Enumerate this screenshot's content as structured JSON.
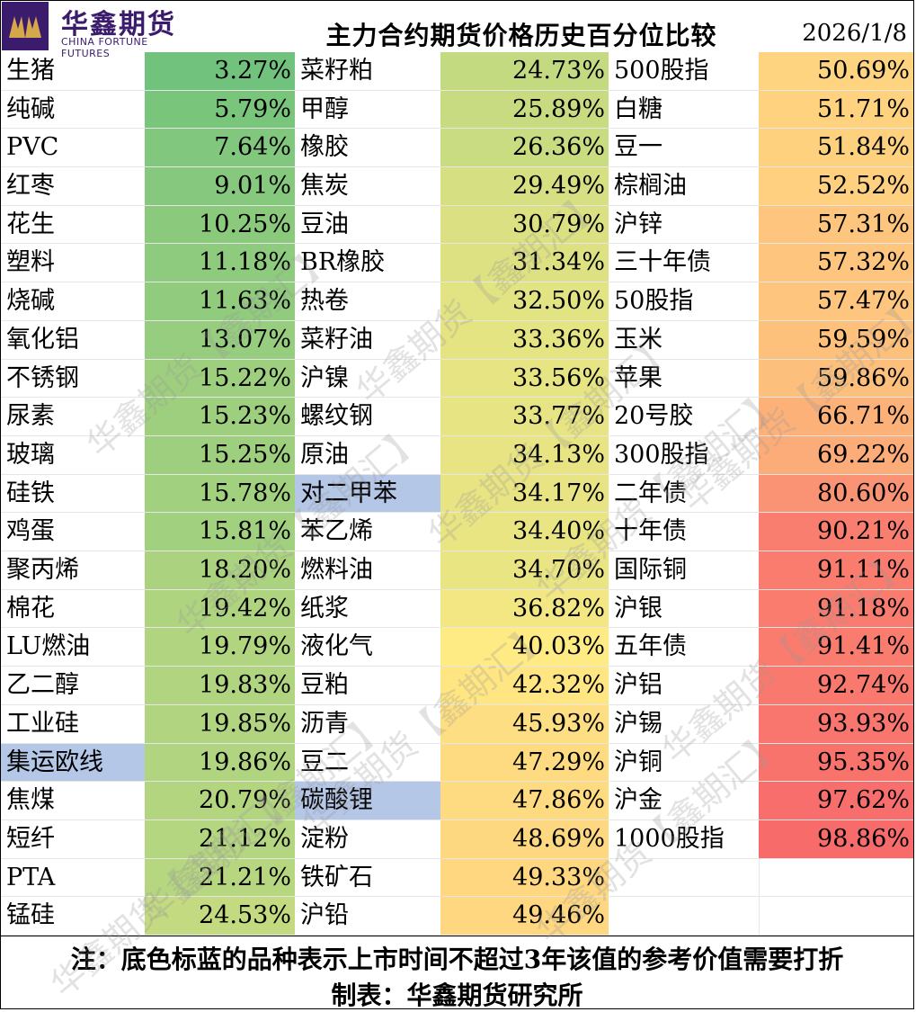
{
  "header": {
    "logo_cn": "华鑫期货",
    "logo_en": "CHINA FORTUNE FUTURES",
    "title": "主力合约期货价格历史百分位比较",
    "date": "2026/1/8"
  },
  "colors": {
    "low": "#63be7b",
    "mid": "#ffeb84",
    "high": "#f8696b",
    "new_listing_highlight": "#b4c7e7"
  },
  "columns": [
    [
      {
        "name": "生猪",
        "value": "3.27%",
        "pct": 3.27
      },
      {
        "name": "纯碱",
        "value": "5.79%",
        "pct": 5.79
      },
      {
        "name": "PVC",
        "value": "7.64%",
        "pct": 7.64
      },
      {
        "name": "红枣",
        "value": "9.01%",
        "pct": 9.01
      },
      {
        "name": "花生",
        "value": "10.25%",
        "pct": 10.25
      },
      {
        "name": "塑料",
        "value": "11.18%",
        "pct": 11.18
      },
      {
        "name": "烧碱",
        "value": "11.63%",
        "pct": 11.63
      },
      {
        "name": "氧化铝",
        "value": "13.07%",
        "pct": 13.07
      },
      {
        "name": "不锈钢",
        "value": "15.22%",
        "pct": 15.22
      },
      {
        "name": "尿素",
        "value": "15.23%",
        "pct": 15.23
      },
      {
        "name": "玻璃",
        "value": "15.25%",
        "pct": 15.25
      },
      {
        "name": "硅铁",
        "value": "15.78%",
        "pct": 15.78
      },
      {
        "name": "鸡蛋",
        "value": "15.81%",
        "pct": 15.81
      },
      {
        "name": "聚丙烯",
        "value": "18.20%",
        "pct": 18.2
      },
      {
        "name": "棉花",
        "value": "19.42%",
        "pct": 19.42
      },
      {
        "name": "LU燃油",
        "value": "19.79%",
        "pct": 19.79
      },
      {
        "name": "乙二醇",
        "value": "19.83%",
        "pct": 19.83
      },
      {
        "name": "工业硅",
        "value": "19.85%",
        "pct": 19.85
      },
      {
        "name": "集运欧线",
        "value": "19.86%",
        "pct": 19.86,
        "new": true
      },
      {
        "name": "焦煤",
        "value": "20.79%",
        "pct": 20.79
      },
      {
        "name": "短纤",
        "value": "21.12%",
        "pct": 21.12
      },
      {
        "name": "PTA",
        "value": "21.21%",
        "pct": 21.21
      },
      {
        "name": "锰硅",
        "value": "24.53%",
        "pct": 24.53
      }
    ],
    [
      {
        "name": "菜籽粕",
        "value": "24.73%",
        "pct": 24.73
      },
      {
        "name": "甲醇",
        "value": "25.89%",
        "pct": 25.89
      },
      {
        "name": "橡胶",
        "value": "26.36%",
        "pct": 26.36
      },
      {
        "name": "焦炭",
        "value": "29.49%",
        "pct": 29.49
      },
      {
        "name": "豆油",
        "value": "30.79%",
        "pct": 30.79
      },
      {
        "name": "BR橡胶",
        "value": "31.34%",
        "pct": 31.34
      },
      {
        "name": "热卷",
        "value": "32.50%",
        "pct": 32.5
      },
      {
        "name": "菜籽油",
        "value": "33.36%",
        "pct": 33.36
      },
      {
        "name": "沪镍",
        "value": "33.56%",
        "pct": 33.56
      },
      {
        "name": "螺纹钢",
        "value": "33.77%",
        "pct": 33.77
      },
      {
        "name": "原油",
        "value": "34.13%",
        "pct": 34.13
      },
      {
        "name": "对二甲苯",
        "value": "34.17%",
        "pct": 34.17,
        "new": true
      },
      {
        "name": "苯乙烯",
        "value": "34.40%",
        "pct": 34.4
      },
      {
        "name": "燃料油",
        "value": "34.70%",
        "pct": 34.7
      },
      {
        "name": "纸浆",
        "value": "36.82%",
        "pct": 36.82
      },
      {
        "name": "液化气",
        "value": "40.03%",
        "pct": 40.03
      },
      {
        "name": "豆粕",
        "value": "42.32%",
        "pct": 42.32
      },
      {
        "name": "沥青",
        "value": "45.93%",
        "pct": 45.93
      },
      {
        "name": "豆二",
        "value": "47.29%",
        "pct": 47.29
      },
      {
        "name": "碳酸锂",
        "value": "47.86%",
        "pct": 47.86,
        "new": true
      },
      {
        "name": "淀粉",
        "value": "48.69%",
        "pct": 48.69
      },
      {
        "name": "铁矿石",
        "value": "49.33%",
        "pct": 49.33
      },
      {
        "name": "沪铅",
        "value": "49.46%",
        "pct": 49.46
      }
    ],
    [
      {
        "name": "500股指",
        "value": "50.69%",
        "pct": 50.69
      },
      {
        "name": "白糖",
        "value": "51.71%",
        "pct": 51.71
      },
      {
        "name": "豆一",
        "value": "51.84%",
        "pct": 51.84
      },
      {
        "name": "棕榈油",
        "value": "52.52%",
        "pct": 52.52
      },
      {
        "name": "沪锌",
        "value": "57.31%",
        "pct": 57.31
      },
      {
        "name": "三十年债",
        "value": "57.32%",
        "pct": 57.32
      },
      {
        "name": "50股指",
        "value": "57.47%",
        "pct": 57.47
      },
      {
        "name": "玉米",
        "value": "59.59%",
        "pct": 59.59
      },
      {
        "name": "苹果",
        "value": "59.86%",
        "pct": 59.86
      },
      {
        "name": "20号胶",
        "value": "66.71%",
        "pct": 66.71
      },
      {
        "name": "300股指",
        "value": "69.22%",
        "pct": 69.22
      },
      {
        "name": "二年债",
        "value": "80.60%",
        "pct": 80.6
      },
      {
        "name": "十年债",
        "value": "90.21%",
        "pct": 90.21
      },
      {
        "name": "国际铜",
        "value": "91.11%",
        "pct": 91.11
      },
      {
        "name": "沪银",
        "value": "91.18%",
        "pct": 91.18
      },
      {
        "name": "五年债",
        "value": "91.41%",
        "pct": 91.41
      },
      {
        "name": "沪铝",
        "value": "92.74%",
        "pct": 92.74
      },
      {
        "name": "沪锡",
        "value": "93.93%",
        "pct": 93.93
      },
      {
        "name": "沪铜",
        "value": "95.35%",
        "pct": 95.35
      },
      {
        "name": "沪金",
        "value": "97.62%",
        "pct": 97.62
      },
      {
        "name": "1000股指",
        "value": "98.86%",
        "pct": 98.86
      }
    ]
  ],
  "footer": {
    "note": "注：底色标蓝的品种表示上市时间不超过3年该值的参考价值需要打折",
    "maker": "制表：华鑫期货研究所"
  },
  "watermark": "华鑫期货【鑫期汇】"
}
